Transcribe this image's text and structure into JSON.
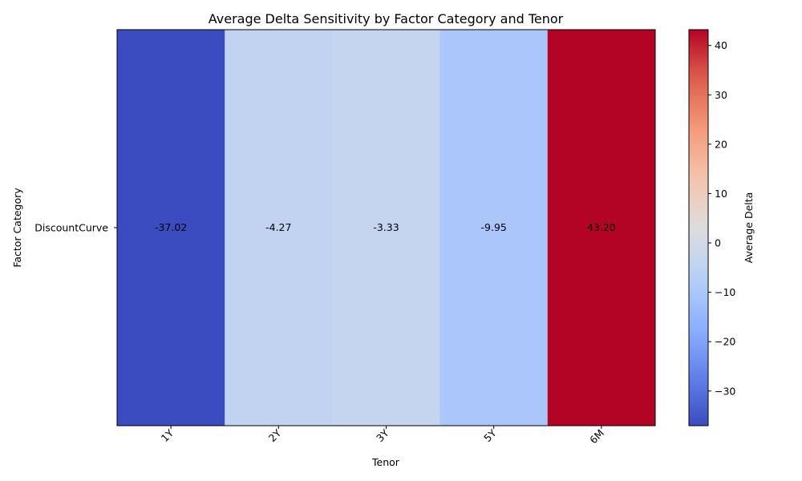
{
  "chart_data": {
    "type": "heatmap",
    "title": "Average Delta Sensitivity by Factor Category and Tenor",
    "xlabel": "Tenor",
    "ylabel": "Factor Category",
    "x_categories": [
      "1Y",
      "2Y",
      "3Y",
      "5Y",
      "6M"
    ],
    "y_categories": [
      "DiscountCurve"
    ],
    "values": [
      [
        -37.02,
        -4.27,
        -3.33,
        -9.95,
        43.2
      ]
    ],
    "cell_labels": [
      [
        "-37.02",
        "-4.27",
        "-3.33",
        "-9.95",
        "43.20"
      ]
    ],
    "colorbar": {
      "label": "Average Delta",
      "colormap": "coolwarm",
      "vmin": -37.02,
      "vmax": 43.2,
      "ticks": [
        -30,
        -20,
        -10,
        0,
        10,
        20,
        30,
        40
      ],
      "tick_labels": [
        "−30",
        "−20",
        "−10",
        "0",
        "10",
        "20",
        "30",
        "40"
      ]
    },
    "grid": false
  }
}
